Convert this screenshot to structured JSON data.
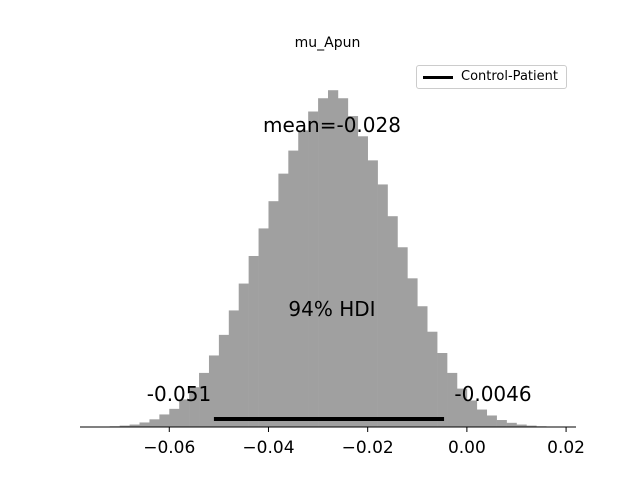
{
  "chart_data": {
    "type": "histogram",
    "title": "mu_Apun",
    "legend": [
      {
        "name": "Control-Patient",
        "color": "#000000"
      }
    ],
    "legend_placement": "upper right",
    "xlabel": "",
    "ylabel": "",
    "xlim": [
      -0.078,
      0.022
    ],
    "ylim": [
      0,
      100
    ],
    "x_ticks": [
      -0.06,
      -0.04,
      -0.02,
      0.0,
      0.02
    ],
    "x_tick_labels": [
      "−0.06",
      "−0.04",
      "−0.02",
      "0.00",
      "0.02"
    ],
    "y_axis_visible": false,
    "grid": false,
    "bar_color": "#a0a0a0",
    "bin_width": 0.002,
    "bins": [
      {
        "x0": -0.074,
        "h": 0.1
      },
      {
        "x0": -0.072,
        "h": 0.2
      },
      {
        "x0": -0.07,
        "h": 0.4
      },
      {
        "x0": -0.068,
        "h": 0.7
      },
      {
        "x0": -0.066,
        "h": 1.3
      },
      {
        "x0": -0.064,
        "h": 2.2
      },
      {
        "x0": -0.062,
        "h": 3.6
      },
      {
        "x0": -0.06,
        "h": 5.2
      },
      {
        "x0": -0.058,
        "h": 7.9
      },
      {
        "x0": -0.056,
        "h": 11.4
      },
      {
        "x0": -0.054,
        "h": 15.5
      },
      {
        "x0": -0.052,
        "h": 20.5
      },
      {
        "x0": -0.05,
        "h": 26.4
      },
      {
        "x0": -0.048,
        "h": 33.4
      },
      {
        "x0": -0.046,
        "h": 41.1
      },
      {
        "x0": -0.044,
        "h": 49.0
      },
      {
        "x0": -0.042,
        "h": 56.9
      },
      {
        "x0": -0.04,
        "h": 64.7
      },
      {
        "x0": -0.038,
        "h": 72.6
      },
      {
        "x0": -0.036,
        "h": 79.2
      },
      {
        "x0": -0.034,
        "h": 85.0
      },
      {
        "x0": -0.032,
        "h": 90.4
      },
      {
        "x0": -0.03,
        "h": 94.2
      },
      {
        "x0": -0.028,
        "h": 96.5
      },
      {
        "x0": -0.026,
        "h": 94.2
      },
      {
        "x0": -0.024,
        "h": 89.1
      },
      {
        "x0": -0.022,
        "h": 83.3
      },
      {
        "x0": -0.02,
        "h": 76.4
      },
      {
        "x0": -0.018,
        "h": 69.5
      },
      {
        "x0": -0.016,
        "h": 60.4
      },
      {
        "x0": -0.014,
        "h": 51.5
      },
      {
        "x0": -0.012,
        "h": 42.6
      },
      {
        "x0": -0.01,
        "h": 34.6
      },
      {
        "x0": -0.008,
        "h": 27.3
      },
      {
        "x0": -0.006,
        "h": 21.2
      },
      {
        "x0": -0.004,
        "h": 15.5
      },
      {
        "x0": -0.002,
        "h": 11.0
      },
      {
        "x0": 0.0,
        "h": 7.6
      },
      {
        "x0": 0.002,
        "h": 5.0
      },
      {
        "x0": 0.004,
        "h": 3.3
      },
      {
        "x0": 0.006,
        "h": 2.0
      },
      {
        "x0": 0.008,
        "h": 1.2
      },
      {
        "x0": 0.01,
        "h": 0.7
      },
      {
        "x0": 0.012,
        "h": 0.4
      },
      {
        "x0": 0.014,
        "h": 0.2
      },
      {
        "x0": 0.016,
        "h": 0.1
      }
    ],
    "mean": -0.028,
    "mean_label": "mean=-0.028",
    "hdi": {
      "prob_label": "94% HDI",
      "low": -0.051,
      "high": -0.0046,
      "low_label": "-0.051",
      "high_label": "-0.0046",
      "color": "#000000"
    }
  }
}
